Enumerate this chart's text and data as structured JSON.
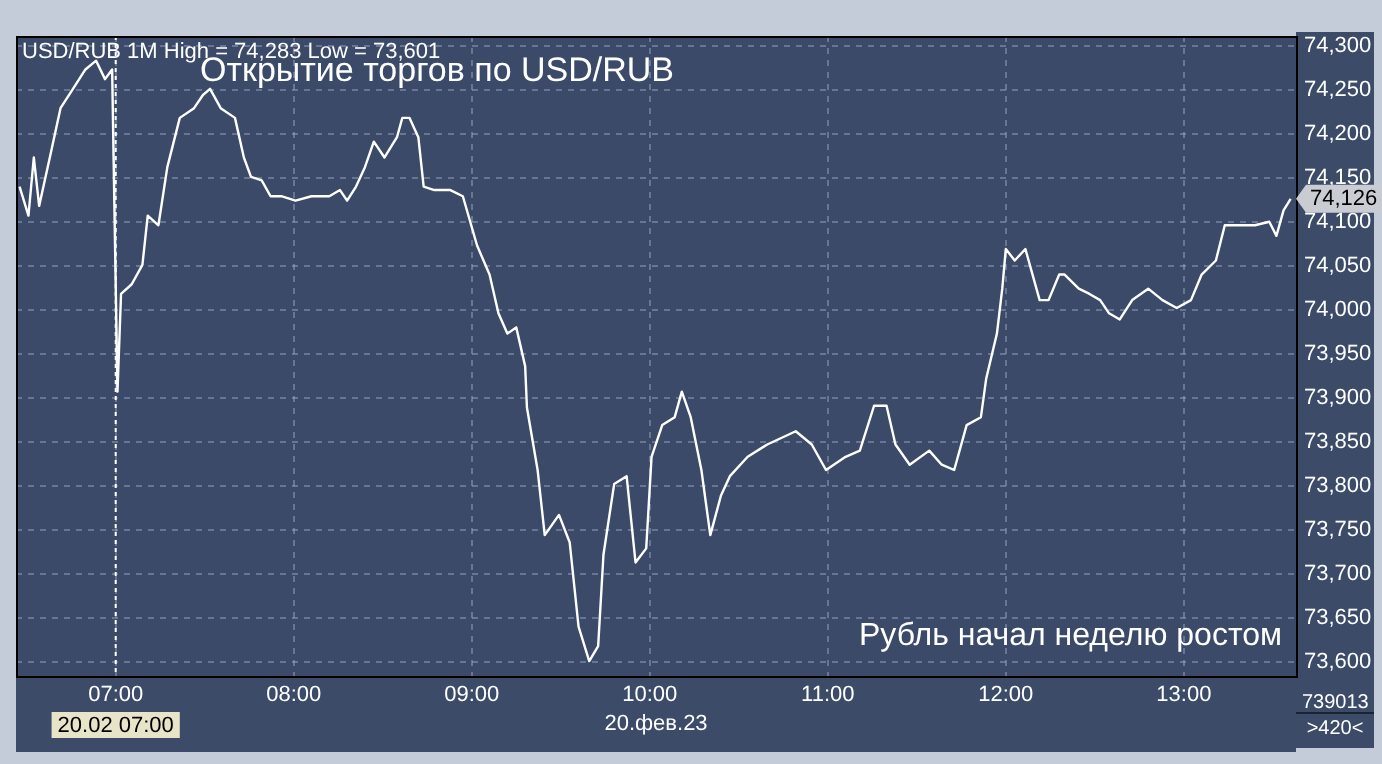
{
  "chart_data": {
    "type": "line",
    "title": "Открытие торгов по USD/RUB",
    "subtitle": "USD/RUB 1M High = 74,283 Low = 73,601",
    "annotations": [
      "Рубль начал неделю ростом",
      "20.фев.23",
      "739013",
      ">420<",
      "74,126"
    ],
    "series": [
      {
        "color": "#ffffff",
        "x": [
          6.46,
          6.51,
          6.54,
          6.57,
          6.63,
          6.69,
          6.76,
          6.83,
          6.89,
          6.94,
          6.98,
          7.01,
          7.03,
          7.09,
          7.15,
          7.18,
          7.24,
          7.29,
          7.36,
          7.44,
          7.49,
          7.53,
          7.59,
          7.67,
          7.72,
          7.76,
          7.82,
          7.87,
          7.93,
          8.01,
          8.1,
          8.2,
          8.26,
          8.3,
          8.35,
          8.4,
          8.45,
          8.51,
          8.58,
          8.61,
          8.65,
          8.7,
          8.73,
          8.79,
          8.88,
          8.95,
          9.03,
          9.1,
          9.15,
          9.2,
          9.25,
          9.3,
          9.31,
          9.37,
          9.41,
          9.49,
          9.55,
          9.6,
          9.66,
          9.71,
          9.74,
          9.8,
          9.87,
          9.92,
          9.98,
          10.01,
          10.07,
          10.14,
          10.18,
          10.23,
          10.29,
          10.34,
          10.4,
          10.45,
          10.55,
          10.66,
          10.82,
          10.91,
          10.99,
          11.1,
          11.18,
          11.26,
          11.33,
          11.38,
          11.46,
          11.57,
          11.64,
          11.71,
          11.78,
          11.86,
          11.89,
          11.95,
          11.98,
          12.0,
          12.05,
          12.11,
          12.19,
          12.24,
          12.3,
          12.33,
          12.41,
          12.47,
          12.53,
          12.58,
          12.64,
          12.71,
          12.8,
          12.88,
          12.96,
          13.04,
          13.1,
          13.18,
          13.23,
          13.3,
          13.4,
          13.48,
          13.52,
          13.56,
          13.6
        ],
        "values": [
          74140,
          74107,
          74173,
          74118,
          74173,
          74229,
          74251,
          74273,
          74283,
          74262,
          74273,
          73907,
          74018,
          74029,
          74051,
          74107,
          74096,
          74162,
          74218,
          74229,
          74244,
          74251,
          74229,
          74218,
          74173,
          74151,
          74147,
          74129,
          74129,
          74124,
          74129,
          74129,
          74136,
          74124,
          74140,
          74162,
          74191,
          74173,
          74196,
          74218,
          74218,
          74196,
          74140,
          74136,
          74136,
          74129,
          74073,
          74040,
          73996,
          73973,
          73980,
          73936,
          73889,
          73818,
          73744,
          73767,
          73736,
          73640,
          73601,
          73618,
          73722,
          73802,
          73811,
          73713,
          73729,
          73833,
          73869,
          73878,
          73907,
          73878,
          73818,
          73744,
          73789,
          73811,
          73833,
          73847,
          73862,
          73847,
          73818,
          73833,
          73840,
          73891,
          73891,
          73847,
          73824,
          73840,
          73824,
          73818,
          73869,
          73878,
          73922,
          73973,
          74024,
          74069,
          74056,
          74069,
          74011,
          74011,
          74040,
          74040,
          74024,
          74018,
          74011,
          73996,
          73989,
          74011,
          74024,
          74011,
          74002,
          74011,
          74040,
          74056,
          74096,
          74096,
          74096,
          74100,
          74084,
          74113,
          74126
        ]
      }
    ],
    "xlim": [
      6.44,
      13.63
    ],
    "xticks": [
      {
        "value": 7,
        "label": "07:00"
      },
      {
        "value": 8,
        "label": "08:00"
      },
      {
        "value": 9,
        "label": "09:00"
      },
      {
        "value": 10,
        "label": "10:00"
      },
      {
        "value": 11,
        "label": "11:00"
      },
      {
        "value": 12,
        "label": "12:00"
      },
      {
        "value": 13,
        "label": "13:00"
      }
    ],
    "ylim": [
      73584,
      74311
    ],
    "yticks": [
      {
        "value": 73600,
        "label": "73,600"
      },
      {
        "value": 73650,
        "label": "73,650"
      },
      {
        "value": 73700,
        "label": "73,700"
      },
      {
        "value": 73750,
        "label": "73,750"
      },
      {
        "value": 73800,
        "label": "73,800"
      },
      {
        "value": 73850,
        "label": "73,850"
      },
      {
        "value": 73900,
        "label": "73,900"
      },
      {
        "value": 73950,
        "label": "73,950"
      },
      {
        "value": 74000,
        "label": "74,000"
      },
      {
        "value": 74050,
        "label": "74,050"
      },
      {
        "value": 74100,
        "label": "74,100"
      },
      {
        "value": 74150,
        "label": "74,150"
      },
      {
        "value": 74200,
        "label": "74,200"
      },
      {
        "value": 74250,
        "label": "74,250"
      },
      {
        "value": 74300,
        "label": "74,300"
      }
    ],
    "ref_lines": [
      {
        "axis": "x",
        "value": 7,
        "label": "20.02 07:00",
        "line_style": "dotted"
      }
    ],
    "grid": true,
    "legend": false,
    "marker": "none",
    "line_style": "solid"
  }
}
